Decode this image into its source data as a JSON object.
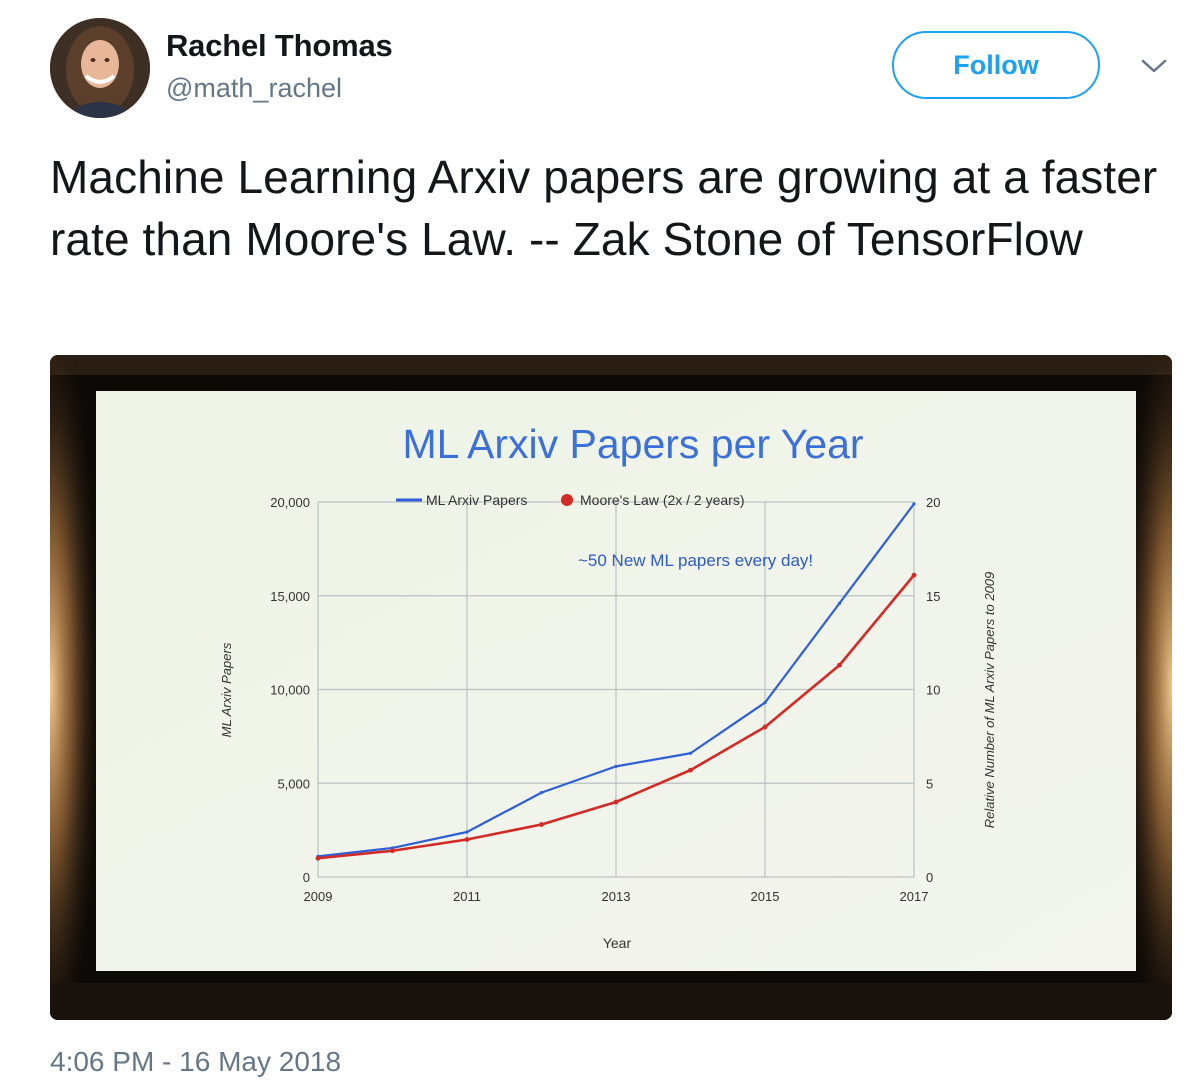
{
  "user": {
    "display_name": "Rachel Thomas",
    "handle": "@math_rachel",
    "avatar_icon": "profile-photo"
  },
  "actions": {
    "follow_label": "Follow",
    "menu_icon": "chevron-down-icon"
  },
  "tweet": {
    "text": "Machine Learning Arxiv papers are growing at a faster rate than Moore's Law. -- Zak Stone of TensorFlow",
    "timestamp": "4:06 PM - 16 May 2018"
  },
  "colors": {
    "accent": "#1da1f2",
    "ml_series": "#2f5fd8",
    "moore_series": "#d42a26",
    "slide_title": "#3b6fd9"
  },
  "chart_data": {
    "type": "line",
    "title": "ML Arxiv Papers per Year",
    "xlabel": "Year",
    "ylabel": "ML Arxiv Papers",
    "y2label": "Relative Number of ML Arxiv Papers  to 2009",
    "annotation": "~50 New ML papers every day!",
    "x": [
      2009,
      2010,
      2011,
      2012,
      2013,
      2014,
      2015,
      2016,
      2017
    ],
    "x_ticks": [
      "2009",
      "2011",
      "2013",
      "2015",
      "2017"
    ],
    "y_ticks": [
      "0",
      "5,000",
      "10,000",
      "15,000",
      "20,000"
    ],
    "y2_ticks": [
      "0",
      "5",
      "10",
      "15",
      "20"
    ],
    "xlim": [
      2009,
      2017
    ],
    "ylim": [
      0,
      20000
    ],
    "y2lim": [
      0,
      20
    ],
    "grid": true,
    "legend_position": "top",
    "series": [
      {
        "name": "ML Arxiv Papers",
        "values": [
          1100,
          1550,
          2400,
          4500,
          5900,
          6600,
          9300,
          14600,
          19900
        ]
      },
      {
        "name": "Moore's Law (2x / 2 years)",
        "values": [
          1000,
          1400,
          2000,
          2800,
          4000,
          5700,
          8000,
          11300,
          16100
        ]
      }
    ]
  }
}
